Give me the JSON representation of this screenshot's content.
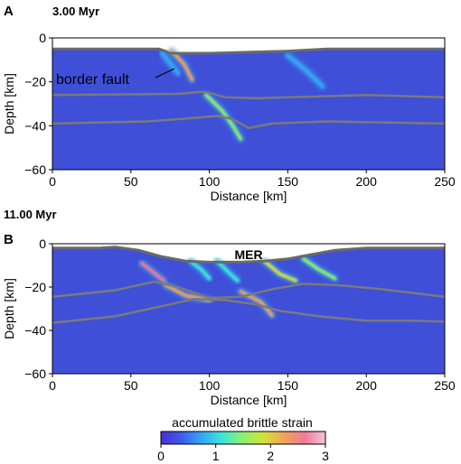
{
  "panels": [
    {
      "letter": "A",
      "time_label": "3.00 Myr",
      "annotation": "border fault",
      "rift_label": ""
    },
    {
      "letter": "B",
      "time_label": "11.00 Myr",
      "annotation": "",
      "rift_label": "MER"
    }
  ],
  "colorbar": {
    "label": "accumulated brittle strain",
    "ticks": [
      "0",
      "1",
      "2",
      "3"
    ],
    "colors": [
      "#4b2fd0",
      "#3a5cf0",
      "#35a8f5",
      "#3ee6d6",
      "#8cf06a",
      "#d4e23a",
      "#f2a15a",
      "#f07a96",
      "#f6c2dd"
    ]
  },
  "chart_data": [
    {
      "type": "heatmap",
      "panel": "A",
      "title": "3.00 Myr",
      "xlabel": "Distance [km]",
      "ylabel": "Depth [km]",
      "xlim": [
        0,
        250
      ],
      "ylim": [
        -60,
        0
      ],
      "xticks": [
        0,
        50,
        100,
        150,
        200,
        250
      ],
      "yticks": [
        0,
        -20,
        -40,
        -60
      ],
      "surface": {
        "x": [
          0,
          68,
          72,
          75,
          85,
          100,
          150,
          175,
          200,
          250
        ],
        "y": [
          -5,
          -5,
          -6,
          -7,
          -7,
          -7,
          -6,
          -5,
          -5,
          -5
        ]
      },
      "interfaces": [
        {
          "x": [
            0,
            80,
            95,
            100,
            110,
            130,
            150,
            200,
            250
          ],
          "y": [
            -26,
            -25.5,
            -24.5,
            -25,
            -27,
            -27.5,
            -27,
            -26,
            -27
          ]
        },
        {
          "x": [
            0,
            60,
            90,
            105,
            115,
            125,
            140,
            175,
            250
          ],
          "y": [
            -39,
            -38,
            -36.5,
            -35.5,
            -37,
            -41,
            -39,
            -38,
            -39
          ]
        }
      ],
      "strain_zones": [
        {
          "x": [
            76,
            84,
            89
          ],
          "y": [
            -6,
            -12,
            -19
          ],
          "level": 2.3
        },
        {
          "x": [
            98,
            108,
            115,
            120
          ],
          "y": [
            -26,
            -33,
            -40,
            -46
          ],
          "level": 1.5
        },
        {
          "x": [
            70,
            80
          ],
          "y": [
            -7,
            -16
          ],
          "level": 0.9
        },
        {
          "x": [
            150,
            162,
            172
          ],
          "y": [
            -8,
            -15,
            -22
          ],
          "level": 0.6
        }
      ]
    },
    {
      "type": "heatmap",
      "panel": "B",
      "title": "11.00 Myr",
      "xlabel": "Distance [km]",
      "ylabel": "Depth [km]",
      "xlim": [
        0,
        250
      ],
      "ylim": [
        -60,
        0
      ],
      "xticks": [
        0,
        50,
        100,
        150,
        200,
        250
      ],
      "yticks": [
        0,
        -20,
        -40,
        -60
      ],
      "surface": {
        "x": [
          0,
          30,
          40,
          55,
          70,
          85,
          100,
          120,
          135,
          150,
          165,
          180,
          200,
          230,
          250
        ],
        "y": [
          -2,
          -2,
          -1.5,
          -3,
          -6,
          -8,
          -8.5,
          -8.5,
          -8,
          -7,
          -5,
          -3,
          -2,
          -2,
          -2
        ]
      },
      "interfaces": [
        {
          "x": [
            0,
            40,
            65,
            80,
            100,
            120,
            140,
            160,
            180,
            210,
            250
          ],
          "y": [
            -24.5,
            -21.5,
            -17.5,
            -20,
            -25,
            -24.5,
            -21,
            -18.5,
            -19,
            -21,
            -24.5
          ]
        },
        {
          "x": [
            0,
            40,
            75,
            90,
            110,
            130,
            145,
            170,
            200,
            230,
            250
          ],
          "y": [
            -36.5,
            -33.5,
            -28,
            -25.5,
            -26,
            -28,
            -31,
            -33.5,
            -35.5,
            -35.5,
            -36
          ]
        }
      ],
      "strain_zones": [
        {
          "x": [
            57,
            64,
            71
          ],
          "y": [
            -9,
            -13,
            -17
          ],
          "level": 2.7
        },
        {
          "x": [
            72,
            85,
            100
          ],
          "y": [
            -19,
            -24,
            -26
          ],
          "level": 2.4
        },
        {
          "x": [
            120,
            133,
            140
          ],
          "y": [
            -22,
            -27,
            -33
          ],
          "level": 2.1
        },
        {
          "x": [
            135,
            145,
            155
          ],
          "y": [
            -8,
            -14,
            -17
          ],
          "level": 1.8
        },
        {
          "x": [
            160,
            170,
            180
          ],
          "y": [
            -7,
            -12,
            -16
          ],
          "level": 1.5
        },
        {
          "x": [
            105,
            112,
            118
          ],
          "y": [
            -8,
            -13,
            -17
          ],
          "level": 1.2
        },
        {
          "x": [
            88,
            95,
            100
          ],
          "y": [
            -8,
            -12,
            -16
          ],
          "level": 1.0
        }
      ]
    }
  ]
}
